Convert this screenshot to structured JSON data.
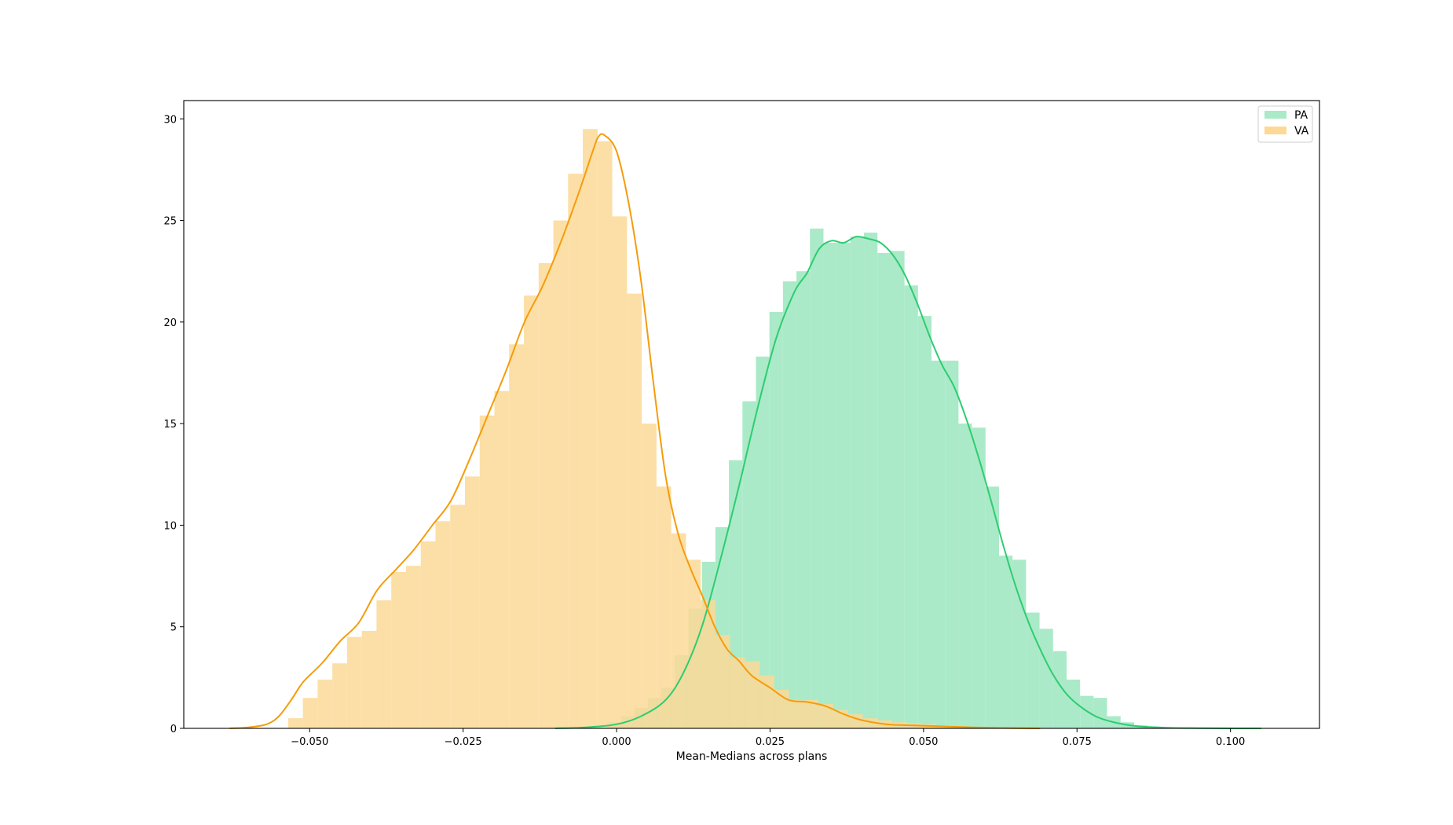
{
  "chart_data": {
    "type": "histogram-kde",
    "xlabel": "Mean-Medians across plans",
    "ylabel": "",
    "xlim": [
      -0.0705,
      0.1145
    ],
    "ylim": [
      0,
      30.9
    ],
    "xticks": [
      -0.05,
      -0.025,
      0.0,
      0.025,
      0.05,
      0.075,
      0.1
    ],
    "xtick_labels": [
      "−0.050",
      "−0.025",
      "0.000",
      "0.025",
      "0.050",
      "0.075",
      "0.100"
    ],
    "yticks": [
      0,
      5,
      10,
      15,
      20,
      25,
      30
    ],
    "ytick_labels": [
      "0",
      "5",
      "10",
      "15",
      "20",
      "25",
      "30"
    ],
    "grid": false,
    "legend": {
      "position": "top-right",
      "entries": [
        "PA",
        "VA"
      ]
    },
    "series": [
      {
        "name": "PA",
        "bar_color": "#aaeac8",
        "line_color": "#2ecc71",
        "bins": {
          "start": -0.0015,
          "width": 0.0022,
          "values": [
            0.3,
            0.6,
            1.0,
            1.5,
            2.0,
            3.6,
            5.9,
            8.2,
            9.9,
            13.2,
            16.1,
            18.3,
            20.5,
            22.0,
            22.5,
            24.6,
            23.9,
            23.9,
            24.2,
            24.4,
            23.4,
            23.5,
            21.8,
            20.3,
            18.1,
            18.1,
            15.0,
            14.8,
            11.9,
            8.5,
            8.3,
            5.7,
            4.9,
            3.8,
            2.4,
            1.6,
            1.5,
            0.6,
            0.3,
            0.15
          ]
        },
        "kde": {
          "x": [
            -0.01,
            -0.005,
            0.0,
            0.004,
            0.008,
            0.011,
            0.014,
            0.017,
            0.02,
            0.023,
            0.026,
            0.029,
            0.031,
            0.033,
            0.035,
            0.037,
            0.039,
            0.041,
            0.043,
            0.045,
            0.047,
            0.049,
            0.051,
            0.053,
            0.055,
            0.057,
            0.059,
            0.061,
            0.063,
            0.065,
            0.067,
            0.069,
            0.071,
            0.073,
            0.075,
            0.078,
            0.081,
            0.085,
            0.09,
            0.095,
            0.1,
            0.105
          ],
          "y": [
            0.0,
            0.05,
            0.2,
            0.6,
            1.4,
            2.8,
            5.1,
            8.4,
            12.0,
            15.8,
            19.2,
            21.5,
            22.4,
            23.6,
            24.0,
            23.9,
            24.2,
            24.1,
            23.9,
            23.3,
            22.3,
            20.9,
            19.3,
            17.9,
            16.8,
            15.2,
            13.3,
            11.2,
            9.0,
            7.0,
            5.3,
            3.9,
            2.7,
            1.8,
            1.2,
            0.6,
            0.3,
            0.1,
            0.03,
            0.01,
            0.0,
            0.0
          ]
        }
      },
      {
        "name": "VA",
        "bar_color": "#fcd996",
        "line_color": "#f59c0b",
        "bins": {
          "start": -0.0535,
          "width": 0.0024,
          "values": [
            0.5,
            1.5,
            2.4,
            3.2,
            4.5,
            4.8,
            6.3,
            7.7,
            8.0,
            9.2,
            10.2,
            11.0,
            12.4,
            15.4,
            16.6,
            18.9,
            21.3,
            22.9,
            25.0,
            27.3,
            29.5,
            28.9,
            25.2,
            21.4,
            15.0,
            11.9,
            9.6,
            8.3,
            6.3,
            4.6,
            3.5,
            3.3,
            2.6,
            1.9,
            1.4,
            1.4,
            1.2,
            0.9,
            0.7,
            0.5,
            0.4,
            0.3,
            0.25,
            0.2,
            0.15,
            0.1
          ]
        },
        "kde": {
          "x": [
            -0.063,
            -0.06,
            -0.057,
            -0.055,
            -0.053,
            -0.051,
            -0.048,
            -0.045,
            -0.042,
            -0.039,
            -0.036,
            -0.033,
            -0.03,
            -0.027,
            -0.024,
            -0.021,
            -0.018,
            -0.015,
            -0.012,
            -0.009,
            -0.006,
            -0.004,
            -0.003,
            -0.002,
            0.0,
            0.002,
            0.004,
            0.006,
            0.008,
            0.01,
            0.012,
            0.014,
            0.016,
            0.018,
            0.02,
            0.022,
            0.025,
            0.028,
            0.031,
            0.034,
            0.037,
            0.04,
            0.044,
            0.048,
            0.053,
            0.058,
            0.063,
            0.069
          ],
          "y": [
            0.0,
            0.05,
            0.2,
            0.6,
            1.4,
            2.3,
            3.2,
            4.3,
            5.2,
            6.8,
            7.8,
            8.8,
            10.0,
            11.2,
            13.2,
            15.4,
            17.6,
            20.0,
            21.8,
            24.0,
            26.5,
            28.3,
            29.1,
            29.2,
            28.4,
            25.8,
            22.0,
            17.0,
            12.4,
            9.6,
            7.9,
            6.5,
            5.0,
            3.9,
            3.3,
            2.6,
            2.0,
            1.4,
            1.3,
            1.1,
            0.7,
            0.4,
            0.2,
            0.15,
            0.1,
            0.05,
            0.02,
            0.0
          ]
        }
      }
    ]
  }
}
